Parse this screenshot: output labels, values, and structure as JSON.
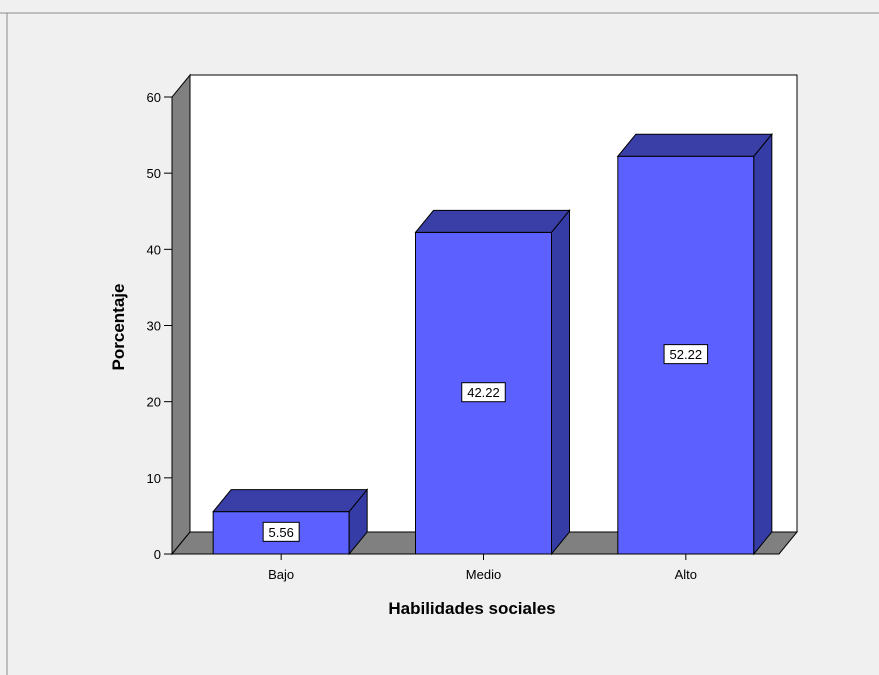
{
  "chart_data": {
    "type": "bar",
    "categories": [
      "Bajo",
      "Medio",
      "Alto"
    ],
    "values": [
      5.56,
      42.22,
      52.22
    ],
    "data_labels": [
      "5.56",
      "42.22",
      "52.22"
    ],
    "title": "",
    "xlabel": "Habilidades sociales",
    "ylabel": "Porcentaje",
    "ylim": [
      0,
      60
    ],
    "yticks": [
      "0",
      "10",
      "20",
      "30",
      "40",
      "50",
      "60"
    ],
    "grid": false,
    "legend": "none",
    "style": "3d"
  },
  "colors": {
    "background": "#f0f0f0",
    "plot_background": "#ffffff",
    "floor_and_wall": "#808080",
    "bar_front": "#5b60ff",
    "bar_top": "#3a3fa8",
    "bar_side": "#363ca6",
    "outline": "#000000"
  }
}
